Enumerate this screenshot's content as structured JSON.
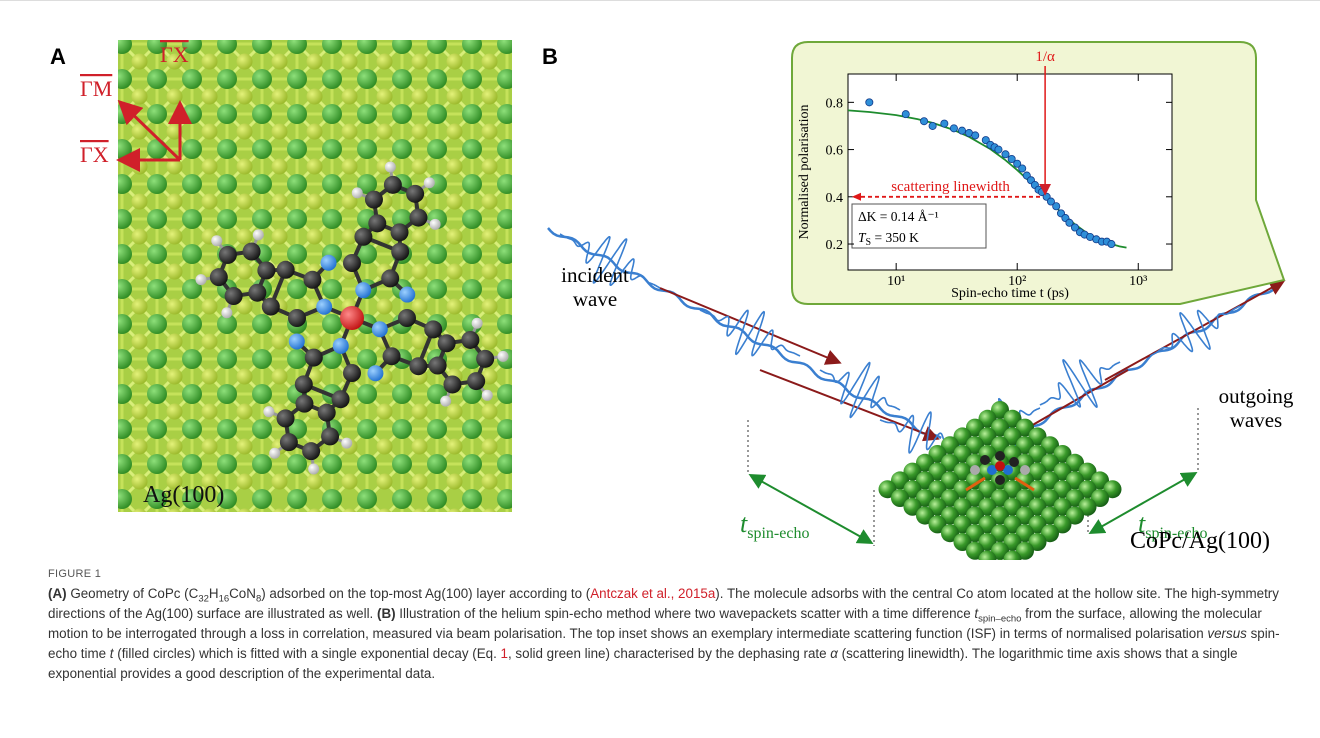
{
  "panel_a": {
    "label": "A",
    "directions": [
      "ΓM",
      "ΓX",
      "ΓX"
    ],
    "surface": "Ag(100)"
  },
  "panel_b": {
    "label": "B",
    "incident_wave": [
      "incident",
      "wave"
    ],
    "outgoing_waves": [
      "outgoing",
      "waves"
    ],
    "time_symbol": "t",
    "time_subscript": "spin-echo",
    "sample": "CoPc/Ag(100)"
  },
  "chart_data": {
    "type": "scatter",
    "ylabel": "Normalised polarisation",
    "xlabel": "Spin-echo time t (ps)",
    "log_x": true,
    "xlim": [
      4,
      1900
    ],
    "ylim": [
      0.09,
      0.92
    ],
    "xticks": [
      {
        "value": 10,
        "label": "10¹"
      },
      {
        "value": 100,
        "label": "10²"
      },
      {
        "value": 1000,
        "label": "10³"
      }
    ],
    "yticks": [
      0.2,
      0.4,
      0.6,
      0.8
    ],
    "series": [
      {
        "style": "markers",
        "color": "#2f8fd8",
        "x": [
          6,
          12,
          17,
          20,
          25,
          30,
          35,
          40,
          45,
          55,
          60,
          65,
          70,
          80,
          90,
          100,
          110,
          120,
          130,
          140,
          150,
          160,
          175,
          190,
          210,
          230,
          250,
          270,
          300,
          330,
          360,
          400,
          450,
          500,
          550,
          600
        ],
        "values": [
          0.8,
          0.75,
          0.72,
          0.7,
          0.71,
          0.69,
          0.68,
          0.67,
          0.66,
          0.64,
          0.62,
          0.61,
          0.6,
          0.58,
          0.56,
          0.54,
          0.52,
          0.49,
          0.47,
          0.45,
          0.43,
          0.42,
          0.4,
          0.38,
          0.36,
          0.33,
          0.31,
          0.29,
          0.27,
          0.25,
          0.24,
          0.23,
          0.22,
          0.21,
          0.21,
          0.2
        ]
      },
      {
        "style": "line",
        "color": "#1e8c2e",
        "x": [
          4,
          6,
          10,
          15,
          20,
          30,
          40,
          60,
          80,
          100,
          130,
          170,
          220,
          300,
          400,
          500,
          700,
          800
        ],
        "values": [
          0.766,
          0.759,
          0.746,
          0.729,
          0.713,
          0.683,
          0.654,
          0.602,
          0.555,
          0.513,
          0.459,
          0.401,
          0.344,
          0.283,
          0.237,
          0.212,
          0.19,
          0.185
        ]
      }
    ],
    "annotations": [
      {
        "text": "1/α",
        "x": 170,
        "y": 0.4
      },
      {
        "text": "scattering linewidth",
        "y": 0.4
      }
    ],
    "box": {
      "line1": "ΔK = 0.14 Å⁻¹",
      "symbol": "T",
      "sub": "S",
      "rest": " = 350 K"
    }
  },
  "caption": {
    "figure": "FIGURE 1",
    "segments": [
      "(A)",
      " Geometry of CoPc (C",
      "32",
      "H",
      "16",
      "CoN",
      "8",
      ") adsorbed on the top-most Ag(100) layer according to (",
      "Antczak et al., 2015a",
      "). The molecule adsorbs with the central Co atom located at the hollow site. The high-symmetry directions of the Ag(100) surface are illustrated as well. ",
      "(B)",
      " Illustration of the helium spin-echo method where two wavepackets scatter with a time difference ",
      "t",
      "spin–echo",
      " from the surface, allowing the molecular motion to be interrogated through a loss in correlation, measured via beam polarisation. The top inset shows an exemplary intermediate scattering function (ISF) in terms of normalised polarisation ",
      "versus",
      " spin-echo time ",
      "t",
      " (filled circles) which is fitted with a single exponential decay (Eq. ",
      "1",
      ", solid green line) characterised by the dephasing rate ",
      "α",
      " (scattering linewidth). The logarithmic time axis shows that a single exponential provides a good description of the experimental data."
    ]
  }
}
